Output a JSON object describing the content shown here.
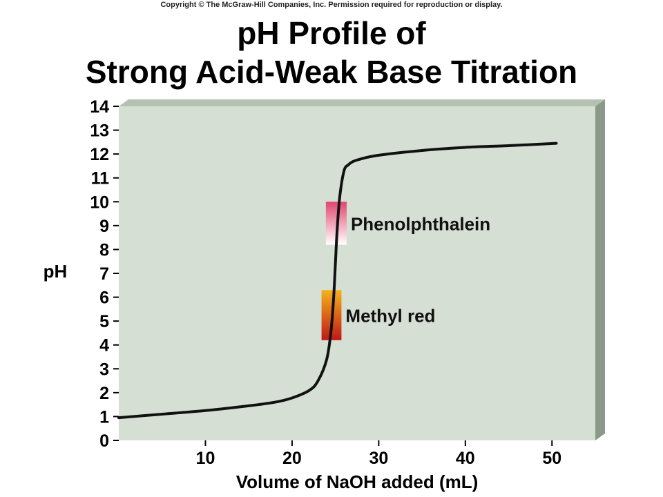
{
  "copyright": "Copyright © The McGraw-Hill Companies, Inc. Permission required for reproduction or display.",
  "colors": {
    "plot_face": "#d6dfd3",
    "plot_side": "#8a9a88",
    "plot_top": "#b4c2b1",
    "curve": "#111111",
    "phenolphthalein_top": "#e0466e",
    "phenolphthalein_bottom": "#ffffff",
    "methyl_red_top": "#f5b21a",
    "methyl_red_bottom": "#c01818"
  },
  "chart_data": {
    "type": "line",
    "title": "pH Profile of",
    "subtitle": "Strong Acid-Weak Base Titration",
    "xlabel": "Volume of NaOH added (mL)",
    "ylabel": "pH",
    "xlim": [
      0,
      55
    ],
    "ylim": [
      0,
      14
    ],
    "x_ticks": [
      10,
      20,
      30,
      40,
      50
    ],
    "y_ticks": [
      0,
      1,
      2,
      3,
      4,
      5,
      6,
      7,
      8,
      9,
      10,
      11,
      12,
      13,
      14
    ],
    "grid": false,
    "series": [
      {
        "x": [
          0,
          5,
          10,
          15,
          18,
          20,
          22,
          23,
          24,
          24.5,
          24.8,
          25,
          25.2,
          25.5,
          26,
          26.5,
          27,
          28,
          30,
          35,
          40,
          45,
          50.5
        ],
        "y": [
          0.95,
          1.1,
          1.25,
          1.45,
          1.6,
          1.78,
          2.1,
          2.5,
          3.4,
          4.6,
          6.0,
          7.4,
          8.8,
          10.2,
          11.3,
          11.55,
          11.68,
          11.8,
          11.95,
          12.15,
          12.28,
          12.35,
          12.45
        ]
      }
    ],
    "indicators": [
      {
        "name": "Phenolphthalein",
        "ph_range": [
          8.2,
          10
        ],
        "x_range": [
          23.9,
          26.3
        ]
      },
      {
        "name": "Methyl red",
        "ph_range": [
          4.2,
          6.3
        ],
        "x_range": [
          23.4,
          25.7
        ]
      }
    ]
  }
}
